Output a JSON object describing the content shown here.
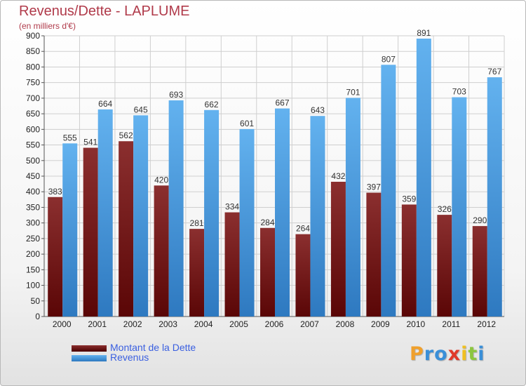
{
  "title": "Revenus/Dette - LAPLUME",
  "subtitle": "(en milliers d'€)",
  "colors": {
    "debt_light": "#8b2f2f",
    "debt_dark": "#5a0606",
    "revenue_light": "#63b2ef",
    "revenue_dark": "#2e79c0",
    "axis_text": "#222222",
    "label_text": "#333333",
    "grid": "#cfcfcf"
  },
  "logo": {
    "letters": [
      "P",
      "r",
      "o",
      "x",
      "i",
      "t",
      "i"
    ],
    "colors": [
      "#f0a02c",
      "#3a8fd8",
      "#3a8fd8",
      "#e03a2a",
      "#f0c020",
      "#8cc63f",
      "#3a8fd8"
    ]
  },
  "chart_data": {
    "type": "bar",
    "title": "Revenus/Dette - LAPLUME",
    "subtitle": "(en milliers d'€)",
    "xlabel": "",
    "ylabel": "",
    "categories": [
      "2000",
      "2001",
      "2002",
      "2003",
      "2004",
      "2005",
      "2006",
      "2007",
      "2008",
      "2009",
      "2010",
      "2011",
      "2012"
    ],
    "series": [
      {
        "name": "Montant de la Dette",
        "values": [
          383,
          541,
          562,
          420,
          281,
          334,
          284,
          264,
          432,
          397,
          359,
          326,
          290
        ]
      },
      {
        "name": "Revenus",
        "values": [
          555,
          664,
          645,
          693,
          662,
          601,
          667,
          643,
          701,
          807,
          891,
          703,
          767
        ]
      }
    ],
    "ylim": [
      0,
      900
    ],
    "ytick_step": 50,
    "grid": true,
    "legend_position": "bottom-left"
  }
}
